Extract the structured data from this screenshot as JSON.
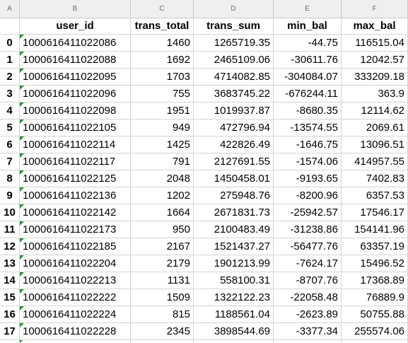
{
  "columns": {
    "letters": [
      "A",
      "B",
      "C",
      "D",
      "E",
      "F"
    ],
    "headers": [
      "",
      "user_id",
      "trans_total",
      "trans_sum",
      "min_bal",
      "max_bal"
    ]
  },
  "rows": [
    {
      "idx": "0",
      "user_id": "1000616411022086",
      "trans_total": "1460",
      "trans_sum": "1265719.35",
      "min_bal": "-44.75",
      "max_bal": "116515.04"
    },
    {
      "idx": "1",
      "user_id": "1000616411022088",
      "trans_total": "1692",
      "trans_sum": "2465109.06",
      "min_bal": "-30611.76",
      "max_bal": "12042.57"
    },
    {
      "idx": "2",
      "user_id": "1000616411022095",
      "trans_total": "1703",
      "trans_sum": "4714082.85",
      "min_bal": "-304084.07",
      "max_bal": "333209.18"
    },
    {
      "idx": "3",
      "user_id": "1000616411022096",
      "trans_total": "755",
      "trans_sum": "3683745.22",
      "min_bal": "-676244.11",
      "max_bal": "363.9"
    },
    {
      "idx": "4",
      "user_id": "1000616411022098",
      "trans_total": "1951",
      "trans_sum": "1019937.87",
      "min_bal": "-8680.35",
      "max_bal": "12114.62"
    },
    {
      "idx": "5",
      "user_id": "1000616411022105",
      "trans_total": "949",
      "trans_sum": "472796.94",
      "min_bal": "-13574.55",
      "max_bal": "2069.61"
    },
    {
      "idx": "6",
      "user_id": "1000616411022114",
      "trans_total": "1425",
      "trans_sum": "422826.49",
      "min_bal": "-1646.75",
      "max_bal": "13096.51"
    },
    {
      "idx": "7",
      "user_id": "1000616411022117",
      "trans_total": "791",
      "trans_sum": "2127691.55",
      "min_bal": "-1574.06",
      "max_bal": "414957.55"
    },
    {
      "idx": "8",
      "user_id": "1000616411022125",
      "trans_total": "2048",
      "trans_sum": "1450458.01",
      "min_bal": "-9193.65",
      "max_bal": "7402.83"
    },
    {
      "idx": "9",
      "user_id": "1000616411022136",
      "trans_total": "1202",
      "trans_sum": "275948.76",
      "min_bal": "-8200.96",
      "max_bal": "6357.53"
    },
    {
      "idx": "10",
      "user_id": "1000616411022142",
      "trans_total": "1664",
      "trans_sum": "2671831.73",
      "min_bal": "-25942.57",
      "max_bal": "17546.17"
    },
    {
      "idx": "11",
      "user_id": "1000616411022173",
      "trans_total": "950",
      "trans_sum": "2100483.49",
      "min_bal": "-31238.86",
      "max_bal": "154141.96"
    },
    {
      "idx": "12",
      "user_id": "1000616411022185",
      "trans_total": "2167",
      "trans_sum": "1521437.27",
      "min_bal": "-56477.76",
      "max_bal": "63357.19"
    },
    {
      "idx": "13",
      "user_id": "1000616411022204",
      "trans_total": "2179",
      "trans_sum": "1901213.99",
      "min_bal": "-7624.17",
      "max_bal": "15496.52"
    },
    {
      "idx": "14",
      "user_id": "1000616411022213",
      "trans_total": "1131",
      "trans_sum": "558100.31",
      "min_bal": "-8707.76",
      "max_bal": "17368.89"
    },
    {
      "idx": "15",
      "user_id": "1000616411022222",
      "trans_total": "1509",
      "trans_sum": "1322122.23",
      "min_bal": "-22058.48",
      "max_bal": "76889.9"
    },
    {
      "idx": "16",
      "user_id": "1000616411022224",
      "trans_total": "815",
      "trans_sum": "1188561.04",
      "min_bal": "-2623.89",
      "max_bal": "50755.88"
    },
    {
      "idx": "17",
      "user_id": "1000616411022228",
      "trans_total": "2345",
      "trans_sum": "3898544.69",
      "min_bal": "-3377.34",
      "max_bal": "255574.06"
    }
  ],
  "colors": {
    "number_as_text_marker": "#2e8b3a",
    "column_letter_bar": "#efefef"
  }
}
